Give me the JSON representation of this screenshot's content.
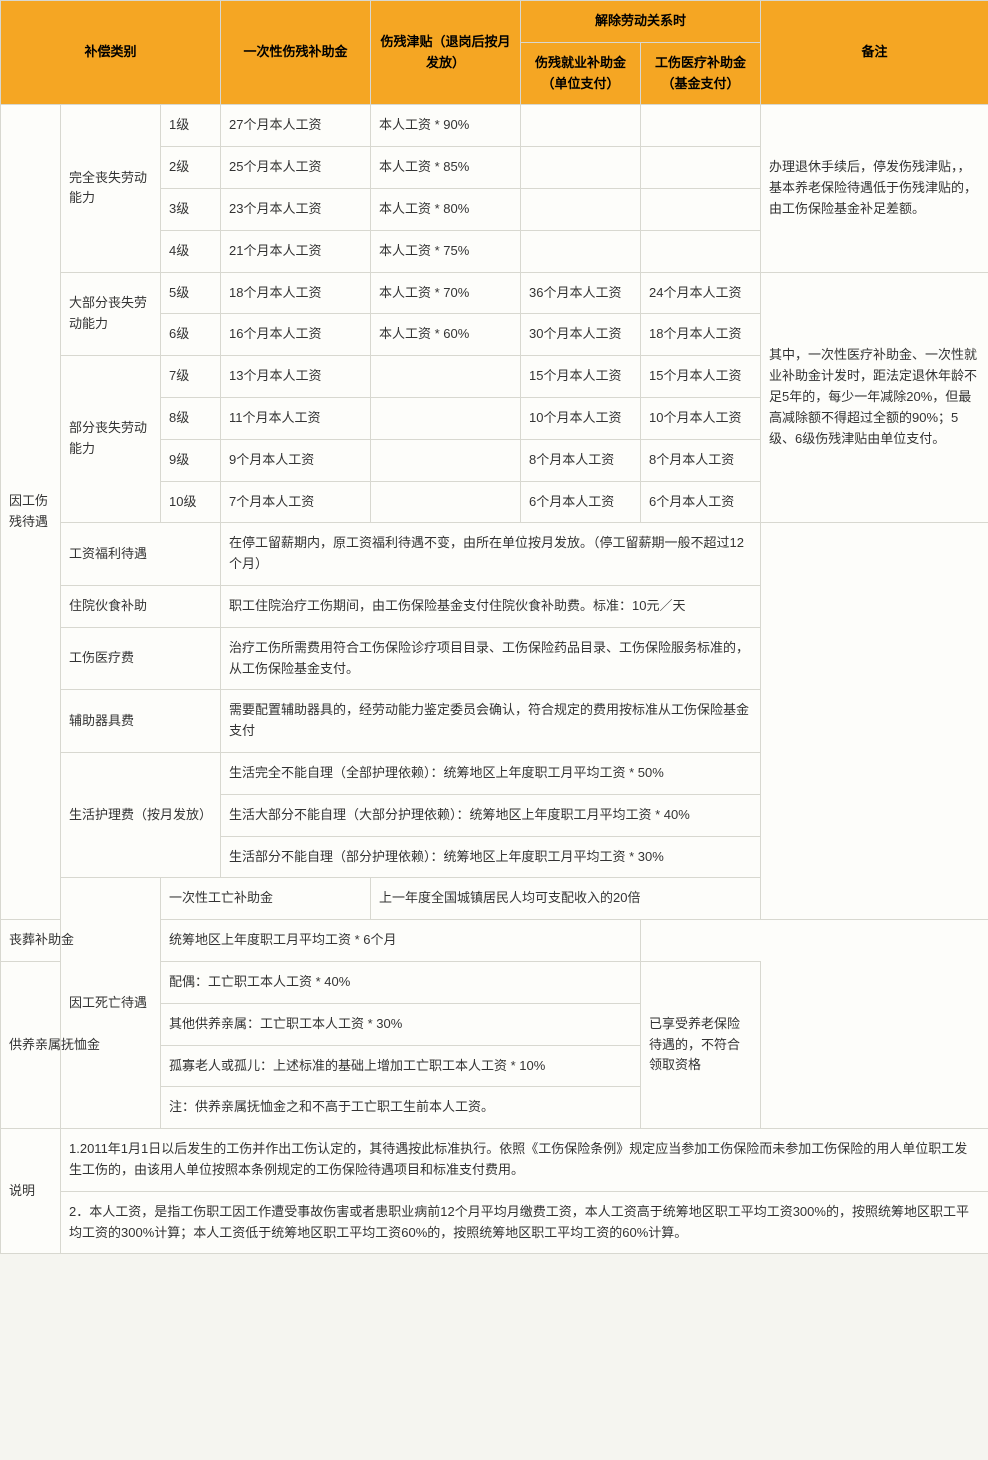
{
  "header": {
    "category": "补偿类别",
    "oneTime": "一次性伤残补助金",
    "allowance": "伤残津贴（退岗后按月发放）",
    "termination": "解除劳动关系时",
    "termA": "伤残就业补助金（单位支付）",
    "termB": "工伤医疗补助金（基金支付）",
    "remark": "备注"
  },
  "injury": {
    "title": "因工伤残待遇",
    "full": "完全丧失劳动能力",
    "most": "大部分丧失劳动能力",
    "part": "部分丧失劳动能力",
    "levels": {
      "l1": {
        "name": "1级",
        "once": "27个月本人工资",
        "allow": "本人工资 * 90%"
      },
      "l2": {
        "name": "2级",
        "once": "25个月本人工资",
        "allow": "本人工资 * 85%"
      },
      "l3": {
        "name": "3级",
        "once": "23个月本人工资",
        "allow": "本人工资 * 80%"
      },
      "l4": {
        "name": "4级",
        "once": "21个月本人工资",
        "allow": "本人工资 * 75%"
      },
      "l5": {
        "name": "5级",
        "once": "18个月本人工资",
        "allow": "本人工资 * 70%",
        "empA": "36个月本人工资",
        "empB": "24个月本人工资"
      },
      "l6": {
        "name": "6级",
        "once": "16个月本人工资",
        "allow": "本人工资 * 60%",
        "empA": "30个月本人工资",
        "empB": "18个月本人工资"
      },
      "l7": {
        "name": "7级",
        "once": "13个月本人工资",
        "empA": "15个月本人工资",
        "empB": "15个月本人工资"
      },
      "l8": {
        "name": "8级",
        "once": "11个月本人工资",
        "empA": "10个月本人工资",
        "empB": "10个月本人工资"
      },
      "l9": {
        "name": "9级",
        "once": "9个月本人工资",
        "empA": "8个月本人工资",
        "empB": "8个月本人工资"
      },
      "l10": {
        "name": "10级",
        "once": "7个月本人工资",
        "empA": "6个月本人工资",
        "empB": "6个月本人工资"
      }
    },
    "remark1": "办理退休手续后，停发伤残津贴，，基本养老保险待遇低于伤残津贴的，由工伤保险基金补足差额。",
    "remark2": "其中，一次性医疗补助金、一次性就业补助金计发时，距法定退休年龄不足5年的，每少一年减除20%，但最高减除额不得超过全额的90%；5级、6级伤残津贴由单位支付。",
    "wage": {
      "label": "工资福利待遇",
      "text": "在停工留薪期内，原工资福利待遇不变，由所在单位按月发放。（停工留薪期一般不超过12个月）"
    },
    "food": {
      "label": "住院伙食补助",
      "text": "职工住院治疗工伤期间，由工伤保险基金支付住院伙食补助费。标准：10元／天"
    },
    "med": {
      "label": "工伤医疗费",
      "text": "治疗工伤所需费用符合工伤保险诊疗项目目录、工伤保险药品目录、工伤保险服务标准的，从工伤保险基金支付。"
    },
    "aid": {
      "label": "辅助器具费",
      "text": "需要配置辅助器具的，经劳动能力鉴定委员会确认，符合规定的费用按标准从工伤保险基金支付"
    },
    "care": {
      "label": "生活护理费（按月发放）",
      "r1": "生活完全不能自理（全部护理依赖）：统筹地区上年度职工月平均工资 * 50%",
      "r2": "生活大部分不能自理（大部分护理依赖）：统筹地区上年度职工月平均工资 * 40%",
      "r3": "生活部分不能自理（部分护理依赖）：统筹地区上年度职工月平均工资 * 30%"
    }
  },
  "death": {
    "title": "因工死亡待遇",
    "onceDeath": {
      "label": "一次性工亡补助金",
      "text": "上一年度全国城镇居民人均可支配收入的20倍"
    },
    "funeral": {
      "label": "丧葬补助金",
      "text": "统筹地区上年度职工月平均工资 * 6个月"
    },
    "pension": {
      "label": "供养亲属抚恤金",
      "r1": "配偶：工亡职工本人工资 * 40%",
      "r2": "其他供养亲属：工亡职工本人工资 * 30%",
      "r3": "孤寡老人或孤儿：上述标准的基础上增加工亡职工本人工资 * 10%",
      "r4": "注：供养亲属抚恤金之和不高于工亡职工生前本人工资。"
    },
    "remark": "已享受养老保险待遇的，不符合领取资格"
  },
  "notes": {
    "label": "说明",
    "n1": "1.2011年1月1日以后发生的工伤并作出工伤认定的，其待遇按此标准执行。依照《工伤保险条例》规定应当参加工伤保险而未参加工伤保险的用人单位职工发生工伤的，由该用人单位按照本条例规定的工伤保险待遇项目和标准支付费用。",
    "n2": "2．本人工资，是指工伤职工因工作遭受事故伤害或者患职业病前12个月平均月缴费工资，本人工资高于统筹地区职工平均工资300%的，按照统筹地区职工平均工资的300%计算；本人工资低于统筹地区职工平均工资60%的，按照统筹地区职工平均工资的60%计算。"
  },
  "colors": {
    "headerBg": "#f5a623",
    "border": "#d8d8d0",
    "pageBg": "#fdfdfa"
  }
}
